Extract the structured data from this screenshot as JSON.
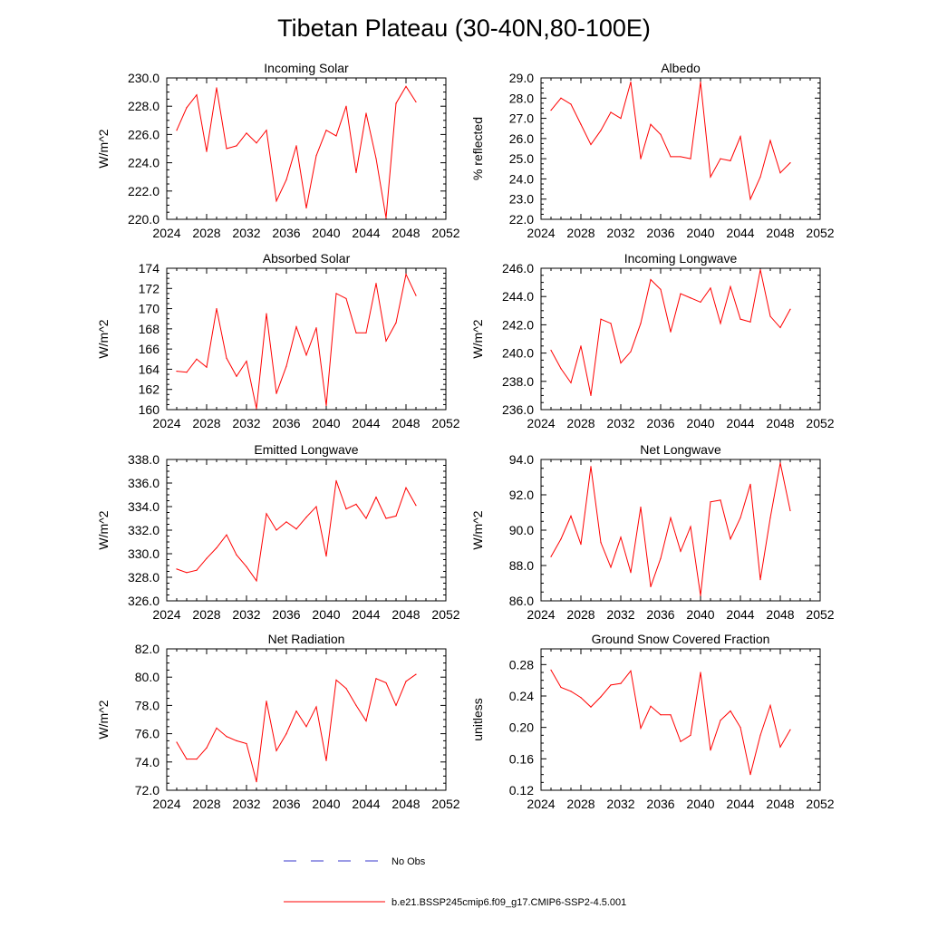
{
  "figure": {
    "title": "Tibetan Plateau (30-40N,80-100E)"
  },
  "legend": {
    "items": [
      {
        "label": "No Obs",
        "color": "#3a3acc",
        "style": "dashed"
      },
      {
        "label": "b.e21.BSSP245cmip6.f09_g17.CMIP6-SSP2-4.5.001",
        "color": "#ff0000",
        "style": "solid"
      }
    ]
  },
  "chart_data": [
    {
      "type": "line",
      "title": "Incoming Solar",
      "ylabel": "W/m^2",
      "xlim": [
        2024,
        2052
      ],
      "xticks": [
        2024,
        2028,
        2032,
        2036,
        2040,
        2044,
        2048,
        2052
      ],
      "ylim": [
        220,
        230
      ],
      "yticks": [
        220,
        222,
        224,
        226,
        228,
        230
      ],
      "ytick_labels": [
        "220.0",
        "222.0",
        "224.0",
        "226.0",
        "228.0",
        "230.0"
      ],
      "x": [
        2025,
        2026,
        2027,
        2028,
        2029,
        2030,
        2031,
        2032,
        2033,
        2034,
        2035,
        2036,
        2037,
        2038,
        2039,
        2040,
        2041,
        2042,
        2043,
        2044,
        2045,
        2046,
        2047,
        2048,
        2049
      ],
      "series": [
        {
          "color": "#ff0000",
          "values": [
            226.3,
            227.9,
            228.8,
            224.8,
            229.3,
            225.0,
            225.2,
            226.1,
            225.4,
            226.3,
            221.3,
            222.8,
            225.2,
            220.8,
            224.5,
            226.3,
            225.9,
            228.0,
            223.3,
            227.5,
            224.3,
            220.1,
            228.2,
            229.4,
            228.3
          ]
        }
      ]
    },
    {
      "type": "line",
      "title": "Albedo",
      "ylabel": "% reflected",
      "xlim": [
        2024,
        2052
      ],
      "xticks": [
        2024,
        2028,
        2032,
        2036,
        2040,
        2044,
        2048,
        2052
      ],
      "ylim": [
        22,
        29
      ],
      "yticks": [
        22,
        23,
        24,
        25,
        26,
        27,
        28,
        29
      ],
      "ytick_labels": [
        "22.0",
        "23.0",
        "24.0",
        "25.0",
        "26.0",
        "27.0",
        "28.0",
        "29.0"
      ],
      "x": [
        2025,
        2026,
        2027,
        2028,
        2029,
        2030,
        2031,
        2032,
        2033,
        2034,
        2035,
        2036,
        2037,
        2038,
        2039,
        2040,
        2041,
        2042,
        2043,
        2044,
        2045,
        2046,
        2047,
        2048,
        2049
      ],
      "series": [
        {
          "color": "#ff0000",
          "values": [
            27.4,
            28.0,
            27.7,
            26.7,
            25.7,
            26.4,
            27.3,
            27.0,
            28.8,
            25.0,
            26.7,
            26.2,
            25.1,
            25.1,
            25.0,
            28.8,
            24.1,
            25.0,
            24.9,
            26.1,
            23.0,
            24.1,
            25.9,
            24.3,
            24.8
          ]
        }
      ]
    },
    {
      "type": "line",
      "title": "Absorbed Solar",
      "ylabel": "W/m^2",
      "xlim": [
        2024,
        2052
      ],
      "xticks": [
        2024,
        2028,
        2032,
        2036,
        2040,
        2044,
        2048,
        2052
      ],
      "ylim": [
        160,
        174
      ],
      "yticks": [
        160,
        162,
        164,
        166,
        168,
        170,
        172,
        174
      ],
      "ytick_labels": [
        "160",
        "162",
        "164",
        "166",
        "168",
        "170",
        "172",
        "174"
      ],
      "x": [
        2025,
        2026,
        2027,
        2028,
        2029,
        2030,
        2031,
        2032,
        2033,
        2034,
        2035,
        2036,
        2037,
        2038,
        2039,
        2040,
        2041,
        2042,
        2043,
        2044,
        2045,
        2046,
        2047,
        2048,
        2049
      ],
      "series": [
        {
          "color": "#ff0000",
          "values": [
            163.8,
            163.7,
            165.0,
            164.2,
            170.0,
            165.1,
            163.3,
            164.8,
            160.1,
            169.5,
            161.6,
            164.3,
            168.2,
            165.4,
            168.1,
            160.4,
            171.5,
            171.0,
            167.6,
            167.6,
            172.5,
            166.8,
            168.6,
            173.4,
            171.3
          ]
        }
      ]
    },
    {
      "type": "line",
      "title": "Incoming Longwave",
      "ylabel": "W/m^2",
      "xlim": [
        2024,
        2052
      ],
      "xticks": [
        2024,
        2028,
        2032,
        2036,
        2040,
        2044,
        2048,
        2052
      ],
      "ylim": [
        236,
        246
      ],
      "yticks": [
        236,
        238,
        240,
        242,
        244,
        246
      ],
      "ytick_labels": [
        "236.0",
        "238.0",
        "240.0",
        "242.0",
        "244.0",
        "246.0"
      ],
      "x": [
        2025,
        2026,
        2027,
        2028,
        2029,
        2030,
        2031,
        2032,
        2033,
        2034,
        2035,
        2036,
        2037,
        2038,
        2039,
        2040,
        2041,
        2042,
        2043,
        2044,
        2045,
        2046,
        2047,
        2048,
        2049
      ],
      "series": [
        {
          "color": "#ff0000",
          "values": [
            240.2,
            238.9,
            237.9,
            240.5,
            237.0,
            242.4,
            242.1,
            239.3,
            240.1,
            242.1,
            245.2,
            244.5,
            241.5,
            244.2,
            243.9,
            243.6,
            244.6,
            242.1,
            244.7,
            242.4,
            242.2,
            245.9,
            242.6,
            241.8,
            243.1
          ]
        }
      ]
    },
    {
      "type": "line",
      "title": "Emitted Longwave",
      "ylabel": "W/m^2",
      "xlim": [
        2024,
        2052
      ],
      "xticks": [
        2024,
        2028,
        2032,
        2036,
        2040,
        2044,
        2048,
        2052
      ],
      "ylim": [
        326,
        338
      ],
      "yticks": [
        326,
        328,
        330,
        332,
        334,
        336,
        338
      ],
      "ytick_labels": [
        "326.0",
        "328.0",
        "330.0",
        "332.0",
        "334.0",
        "336.0",
        "338.0"
      ],
      "x": [
        2025,
        2026,
        2027,
        2028,
        2029,
        2030,
        2031,
        2032,
        2033,
        2034,
        2035,
        2036,
        2037,
        2038,
        2039,
        2040,
        2041,
        2042,
        2043,
        2044,
        2045,
        2046,
        2047,
        2048,
        2049
      ],
      "series": [
        {
          "color": "#ff0000",
          "values": [
            328.7,
            328.4,
            328.6,
            329.6,
            330.5,
            331.6,
            329.9,
            328.9,
            327.7,
            333.4,
            332.0,
            332.7,
            332.1,
            333.1,
            334.0,
            329.8,
            336.2,
            333.8,
            334.2,
            333.0,
            334.8,
            333.0,
            333.2,
            335.6,
            334.1
          ]
        }
      ]
    },
    {
      "type": "line",
      "title": "Net Longwave",
      "ylabel": "W/m^2",
      "xlim": [
        2024,
        2052
      ],
      "xticks": [
        2024,
        2028,
        2032,
        2036,
        2040,
        2044,
        2048,
        2052
      ],
      "ylim": [
        86,
        94
      ],
      "yticks": [
        86,
        88,
        90,
        92,
        94
      ],
      "ytick_labels": [
        "86.0",
        "88.0",
        "90.0",
        "92.0",
        "94.0"
      ],
      "x": [
        2025,
        2026,
        2027,
        2028,
        2029,
        2030,
        2031,
        2032,
        2033,
        2034,
        2035,
        2036,
        2037,
        2038,
        2039,
        2040,
        2041,
        2042,
        2043,
        2044,
        2045,
        2046,
        2047,
        2048,
        2049
      ],
      "series": [
        {
          "color": "#ff0000",
          "values": [
            88.5,
            89.5,
            90.8,
            89.2,
            93.6,
            89.3,
            87.9,
            89.6,
            87.6,
            91.3,
            86.8,
            88.4,
            90.7,
            88.8,
            90.2,
            86.3,
            91.6,
            91.7,
            89.5,
            90.7,
            92.6,
            87.2,
            90.7,
            93.8,
            91.1
          ]
        }
      ]
    },
    {
      "type": "line",
      "title": "Net Radiation",
      "ylabel": "W/m^2",
      "xlim": [
        2024,
        2052
      ],
      "xticks": [
        2024,
        2028,
        2032,
        2036,
        2040,
        2044,
        2048,
        2052
      ],
      "ylim": [
        72,
        82
      ],
      "yticks": [
        72,
        74,
        76,
        78,
        80,
        82
      ],
      "ytick_labels": [
        "72.0",
        "74.0",
        "76.0",
        "78.0",
        "80.0",
        "82.0"
      ],
      "x": [
        2025,
        2026,
        2027,
        2028,
        2029,
        2030,
        2031,
        2032,
        2033,
        2034,
        2035,
        2036,
        2037,
        2038,
        2039,
        2040,
        2041,
        2042,
        2043,
        2044,
        2045,
        2046,
        2047,
        2048,
        2049
      ],
      "series": [
        {
          "color": "#ff0000",
          "values": [
            75.4,
            74.2,
            74.2,
            75.0,
            76.4,
            75.8,
            75.5,
            75.3,
            72.6,
            78.3,
            74.8,
            76.0,
            77.6,
            76.5,
            77.9,
            74.1,
            79.8,
            79.2,
            78.0,
            76.9,
            79.9,
            79.6,
            78.0,
            79.7,
            80.2
          ]
        }
      ]
    },
    {
      "type": "line",
      "title": "Ground Snow Covered Fraction",
      "ylabel": "unitless",
      "xlim": [
        2024,
        2052
      ],
      "xticks": [
        2024,
        2028,
        2032,
        2036,
        2040,
        2044,
        2048,
        2052
      ],
      "ylim": [
        0.12,
        0.3
      ],
      "yticks": [
        0.12,
        0.16,
        0.2,
        0.24,
        0.28
      ],
      "ytick_labels": [
        "0.12",
        "0.16",
        "0.20",
        "0.24",
        "0.28"
      ],
      "x": [
        2025,
        2026,
        2027,
        2028,
        2029,
        2030,
        2031,
        2032,
        2033,
        2034,
        2035,
        2036,
        2037,
        2038,
        2039,
        2040,
        2041,
        2042,
        2043,
        2044,
        2045,
        2046,
        2047,
        2048,
        2049
      ],
      "series": [
        {
          "color": "#ff0000",
          "values": [
            0.273,
            0.251,
            0.246,
            0.238,
            0.226,
            0.239,
            0.254,
            0.256,
            0.272,
            0.199,
            0.227,
            0.216,
            0.216,
            0.182,
            0.19,
            0.27,
            0.171,
            0.209,
            0.221,
            0.2,
            0.14,
            0.19,
            0.228,
            0.175,
            0.197
          ]
        }
      ]
    }
  ]
}
